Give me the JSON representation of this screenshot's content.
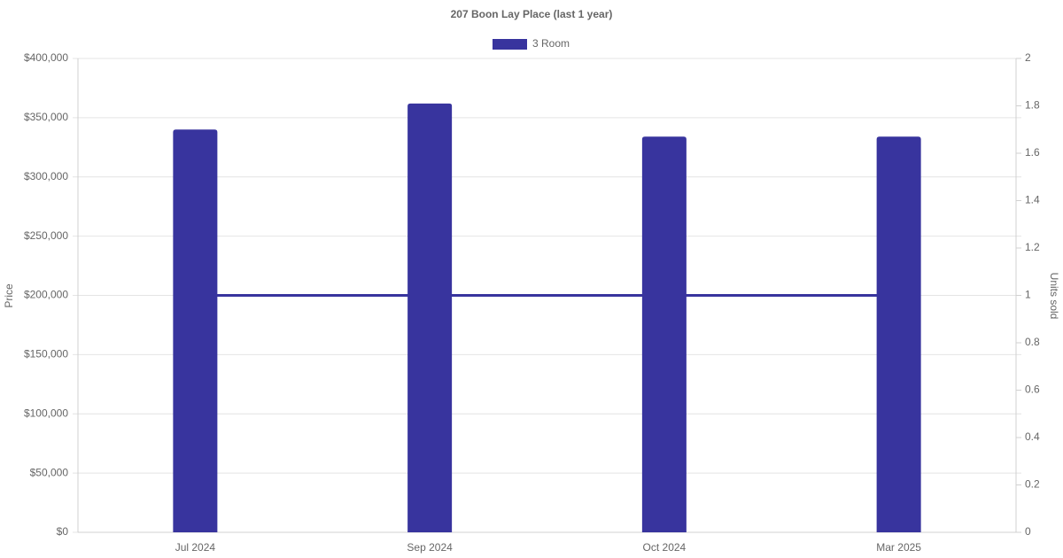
{
  "chart_data": {
    "type": "bar",
    "title": "207 Boon Lay Place (last 1 year)",
    "y_label": "Price",
    "y2_label": "Units sold",
    "categories": [
      "Jul 2024",
      "Sep 2024",
      "Oct 2024",
      "Mar 2025"
    ],
    "series": [
      {
        "name": "3 Room",
        "type": "bar",
        "color": "#38349e",
        "values": [
          340000,
          362000,
          334000,
          334000
        ]
      },
      {
        "type": "line",
        "axis": "y2",
        "color": "#38349e",
        "values": [
          1,
          1,
          1,
          1
        ]
      }
    ],
    "ylim": [
      0,
      400000
    ],
    "yticks": [
      {
        "value": 0,
        "label": "$0"
      },
      {
        "value": 50000,
        "label": "$50,000"
      },
      {
        "value": 100000,
        "label": "$100,000"
      },
      {
        "value": 150000,
        "label": "$150,000"
      },
      {
        "value": 200000,
        "label": "$200,000"
      },
      {
        "value": 250000,
        "label": "$250,000"
      },
      {
        "value": 300000,
        "label": "$300,000"
      },
      {
        "value": 350000,
        "label": "$350,000"
      },
      {
        "value": 400000,
        "label": "$400,000"
      }
    ],
    "y2lim": [
      0,
      2
    ],
    "y2ticks": [
      0,
      0.2,
      0.4,
      0.6,
      0.8,
      1,
      1.2,
      1.4,
      1.6,
      1.8,
      2
    ],
    "grid": true,
    "legend": "top"
  }
}
